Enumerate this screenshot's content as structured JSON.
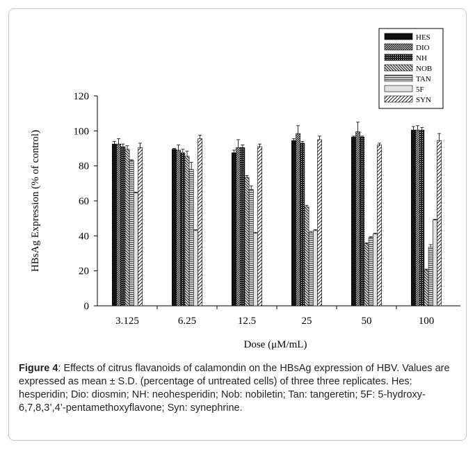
{
  "chart_data": {
    "type": "bar",
    "xlabel": "Dose (μM/mL)",
    "ylabel": "HBsAg Expression (% of control)",
    "ylim": [
      0,
      120
    ],
    "yticks": [
      "0",
      "20",
      "40",
      "60",
      "80",
      "100",
      "120"
    ],
    "categories": [
      "3.125",
      "6.25",
      "12.5",
      "25",
      "50",
      "100"
    ],
    "legend_position": "top-right",
    "series": [
      {
        "name": "HES",
        "values": [
          92.5,
          89.5,
          87.5,
          94.5,
          96.5,
          100.5
        ],
        "errors": [
          1.5,
          0.5,
          1.5,
          1.0,
          0.5,
          2.0
        ],
        "pattern": "solid"
      },
      {
        "name": "DIO",
        "values": [
          92.5,
          89.0,
          90.5,
          98.5,
          99.5,
          100.5
        ],
        "errors": [
          3.0,
          3.0,
          4.5,
          4.5,
          5.5,
          2.5
        ],
        "pattern": "diag"
      },
      {
        "name": "NH",
        "values": [
          91.0,
          87.5,
          90.5,
          93.0,
          96.5,
          100.5
        ],
        "errors": [
          1.5,
          2.0,
          1.5,
          1.0,
          0.5,
          1.5
        ],
        "pattern": "cross"
      },
      {
        "name": "NOB",
        "values": [
          89.5,
          85.5,
          73.5,
          56.5,
          35.5,
          20.5
        ],
        "errors": [
          2.0,
          3.0,
          1.0,
          1.0,
          0.5,
          0.5
        ],
        "pattern": "dense-diag"
      },
      {
        "name": "TAN",
        "values": [
          83.0,
          78.0,
          66.5,
          42.0,
          39.0,
          33.5
        ],
        "errors": [
          0.5,
          4.0,
          2.0,
          0.5,
          0.5,
          1.5
        ],
        "pattern": "hlines"
      },
      {
        "name": "5F",
        "values": [
          64.5,
          43.0,
          41.5,
          43.0,
          41.0,
          49.0
        ],
        "errors": [
          0.5,
          0.5,
          0.5,
          0.5,
          0.5,
          0.5
        ],
        "pattern": "light"
      },
      {
        "name": "SYN",
        "values": [
          90.5,
          95.5,
          91.0,
          95.0,
          92.0,
          94.5
        ],
        "errors": [
          2.5,
          2.0,
          1.5,
          2.0,
          1.0,
          4.0
        ],
        "pattern": "sparse-diag"
      }
    ]
  },
  "caption": {
    "label": "Figure 4",
    "text": ": Effects of citrus flavanoids of calamondin on the HBsAg expression of HBV. Values are expressed as mean ± S.D. (percentage of untreated cells) of three three replicates. Hes: hesperidin; Dio: diosmin; NH: neohesperidin; Nob: nobiletin; Tan: tangeretin; 5F: 5-hydroxy-6,7,8,3’,4’-pentamethoxyflavone; Syn: synephrine."
  }
}
